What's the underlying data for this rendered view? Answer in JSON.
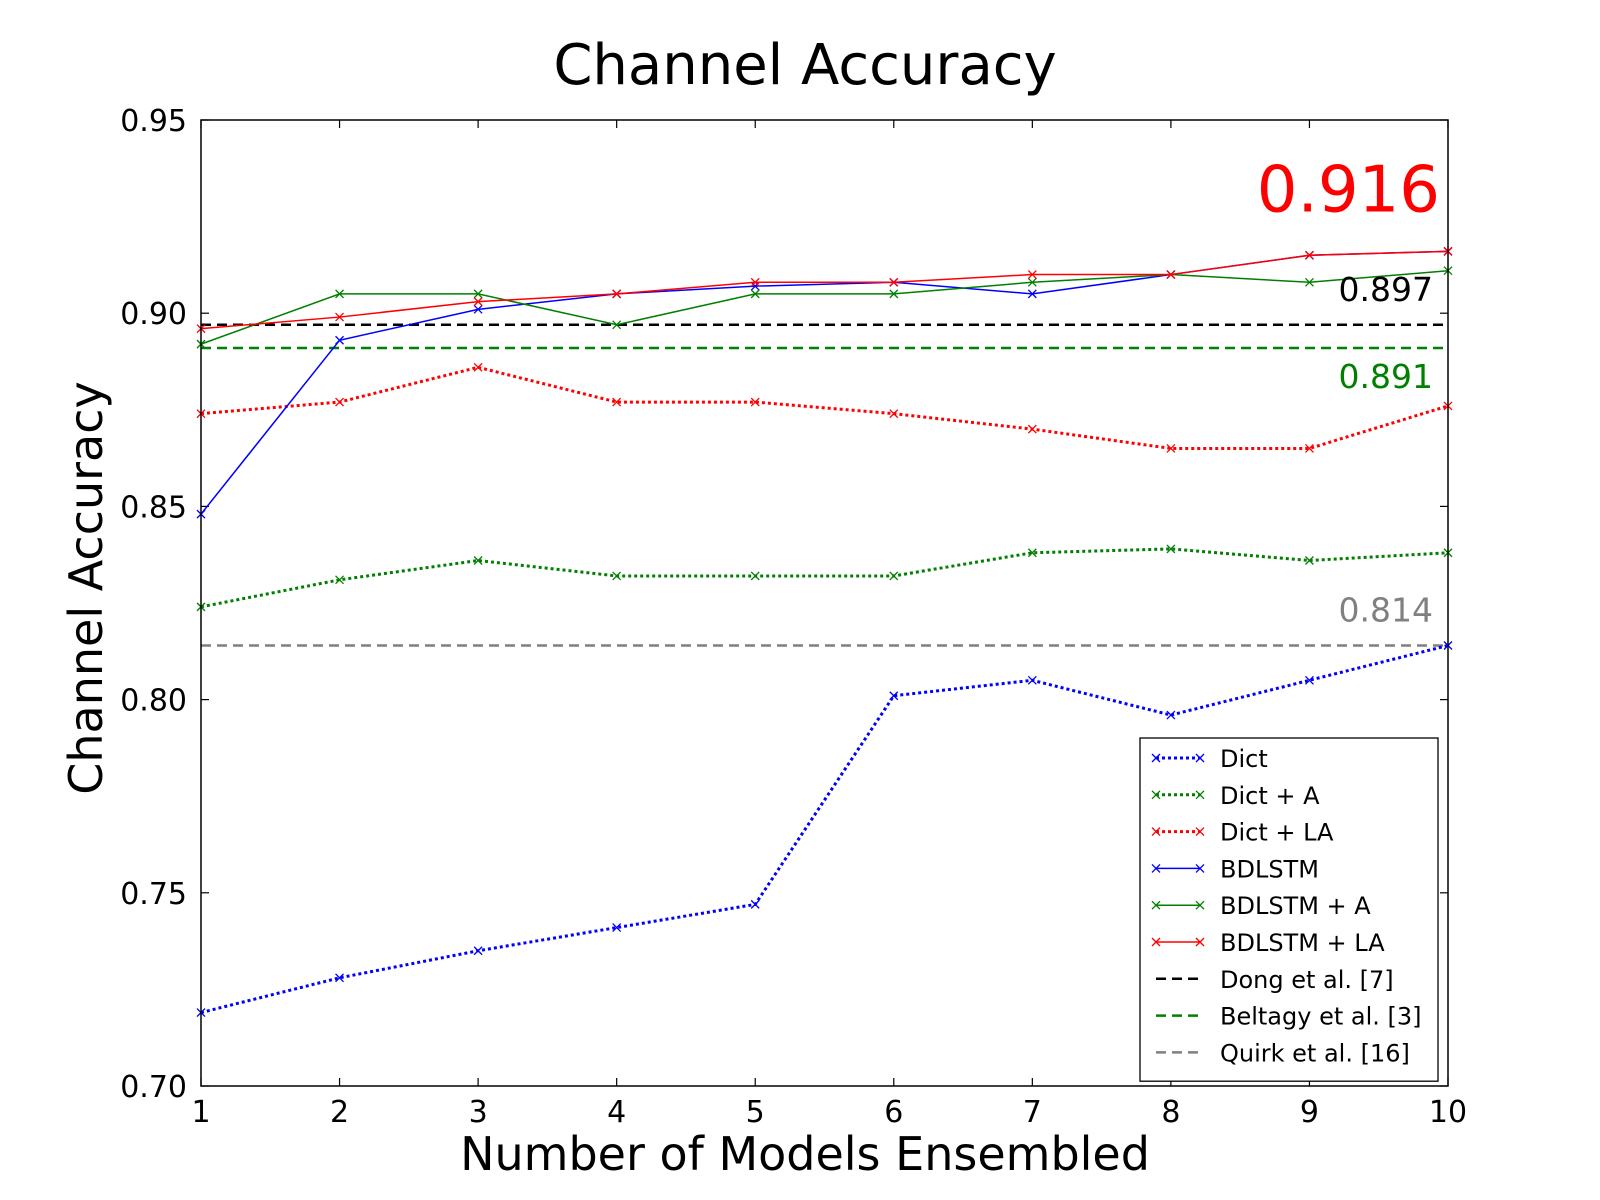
{
  "chart_data": {
    "type": "line",
    "title": "Channel Accuracy",
    "xlabel": "Number of Models Ensembled",
    "ylabel": "Channel Accuracy",
    "xlim": [
      1,
      10
    ],
    "ylim": [
      0.7,
      0.95
    ],
    "x_ticks": [
      "1",
      "2",
      "3",
      "4",
      "5",
      "6",
      "7",
      "8",
      "9",
      "10"
    ],
    "y_ticks": [
      "0.70",
      "0.75",
      "0.80",
      "0.85",
      "0.90",
      "0.95"
    ],
    "grid": false,
    "legend_position": "lower-right",
    "x": [
      1,
      2,
      3,
      4,
      5,
      6,
      7,
      8,
      9,
      10
    ],
    "series": [
      {
        "name": "Dict",
        "color": "#0000ff",
        "style": "dotted-marker",
        "values": [
          0.719,
          0.728,
          0.735,
          0.741,
          0.747,
          0.801,
          0.805,
          0.796,
          0.805,
          0.814
        ]
      },
      {
        "name": "Dict + A",
        "color": "#008000",
        "style": "dotted-marker",
        "values": [
          0.824,
          0.831,
          0.836,
          0.832,
          0.832,
          0.832,
          0.838,
          0.839,
          0.836,
          0.838
        ]
      },
      {
        "name": "Dict + LA",
        "color": "#ff0000",
        "style": "dotted-marker",
        "values": [
          0.874,
          0.877,
          0.886,
          0.877,
          0.877,
          0.874,
          0.87,
          0.865,
          0.865,
          0.876
        ]
      },
      {
        "name": "BDLSTM",
        "color": "#0000ff",
        "style": "solid-marker",
        "values": [
          0.848,
          0.893,
          0.901,
          0.905,
          0.907,
          0.908,
          0.905,
          0.91,
          0.915,
          0.916
        ]
      },
      {
        "name": "BDLSTM + A",
        "color": "#008000",
        "style": "solid-marker",
        "values": [
          0.892,
          0.905,
          0.905,
          0.897,
          0.905,
          0.905,
          0.908,
          0.91,
          0.908,
          0.911
        ]
      },
      {
        "name": "BDLSTM + LA",
        "color": "#ff0000",
        "style": "solid-marker",
        "values": [
          0.896,
          0.899,
          0.903,
          0.905,
          0.908,
          0.908,
          0.91,
          0.91,
          0.915,
          0.916
        ]
      },
      {
        "name": "Dong et al. [7]",
        "color": "#000000",
        "style": "dashed",
        "constant": 0.897
      },
      {
        "name": "Beltagy et al. [3]",
        "color": "#008000",
        "style": "dashed",
        "constant": 0.891
      },
      {
        "name": "Quirk et al. [16]",
        "color": "#808080",
        "style": "dashed",
        "constant": 0.814
      }
    ],
    "annotations": [
      {
        "text": "0.916",
        "value": 0.916,
        "color": "#ff0000",
        "size": "large"
      },
      {
        "text": "0.897",
        "value": 0.897,
        "color": "#000000",
        "size": "normal"
      },
      {
        "text": "0.891",
        "value": 0.891,
        "color": "#008000",
        "size": "normal"
      },
      {
        "text": "0.814",
        "value": 0.814,
        "color": "#808080",
        "size": "normal"
      }
    ]
  }
}
